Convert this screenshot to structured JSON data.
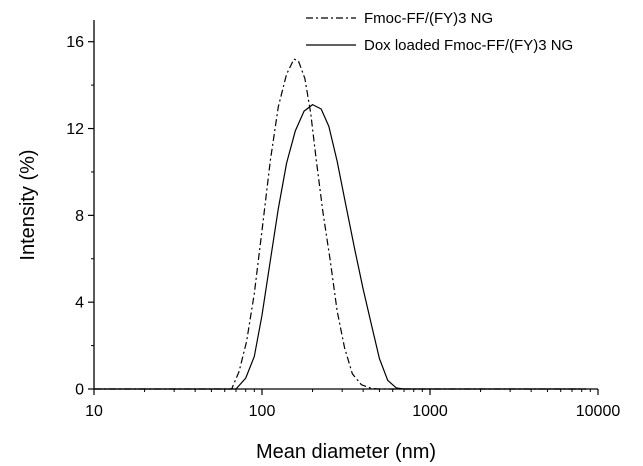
{
  "chart_data": {
    "type": "line",
    "title": "",
    "xlabel": "Mean diameter (nm)",
    "ylabel": "Intensity (%)",
    "xscale": "log",
    "xlim": [
      10,
      10000
    ],
    "ylim": [
      0,
      17
    ],
    "x_ticks": [
      10,
      100,
      1000,
      10000
    ],
    "x_tick_labels": [
      "10",
      "100",
      "1000",
      "10000"
    ],
    "y_ticks": [
      0,
      4,
      8,
      12,
      16
    ],
    "y_tick_labels": [
      "0",
      "4",
      "8",
      "12",
      "16"
    ],
    "grid": false,
    "legend_position": "top-right",
    "series": [
      {
        "name": "Fmoc-FF/(FY)3 NG",
        "line_style": "dash-dot",
        "color": "#000000",
        "x": [
          10,
          66,
          73,
          81,
          90,
          100,
          112,
          125,
          140,
          155,
          165,
          180,
          195,
          210,
          230,
          255,
          280,
          310,
          345,
          390,
          440,
          490,
          550,
          8500
        ],
        "y": [
          0,
          0,
          0.8,
          2.2,
          4.4,
          7.3,
          10.5,
          13.0,
          14.5,
          15.2,
          15.1,
          14.3,
          12.7,
          10.6,
          8.2,
          5.9,
          3.6,
          1.9,
          0.7,
          0.2,
          0.05,
          0,
          0,
          0
        ]
      },
      {
        "name": "Dox loaded Fmoc-FF/(FY)3 NG",
        "line_style": "solid",
        "color": "#000000",
        "x": [
          10,
          70,
          80,
          90,
          100,
          112,
          125,
          140,
          158,
          178,
          200,
          225,
          250,
          280,
          315,
          355,
          400,
          450,
          500,
          560,
          630,
          700,
          800,
          8500
        ],
        "y": [
          0,
          0,
          0.5,
          1.5,
          3.4,
          5.9,
          8.3,
          10.4,
          11.9,
          12.8,
          13.1,
          12.9,
          12.1,
          10.5,
          8.5,
          6.5,
          4.6,
          2.9,
          1.4,
          0.4,
          0.05,
          0,
          0,
          0
        ]
      }
    ]
  }
}
